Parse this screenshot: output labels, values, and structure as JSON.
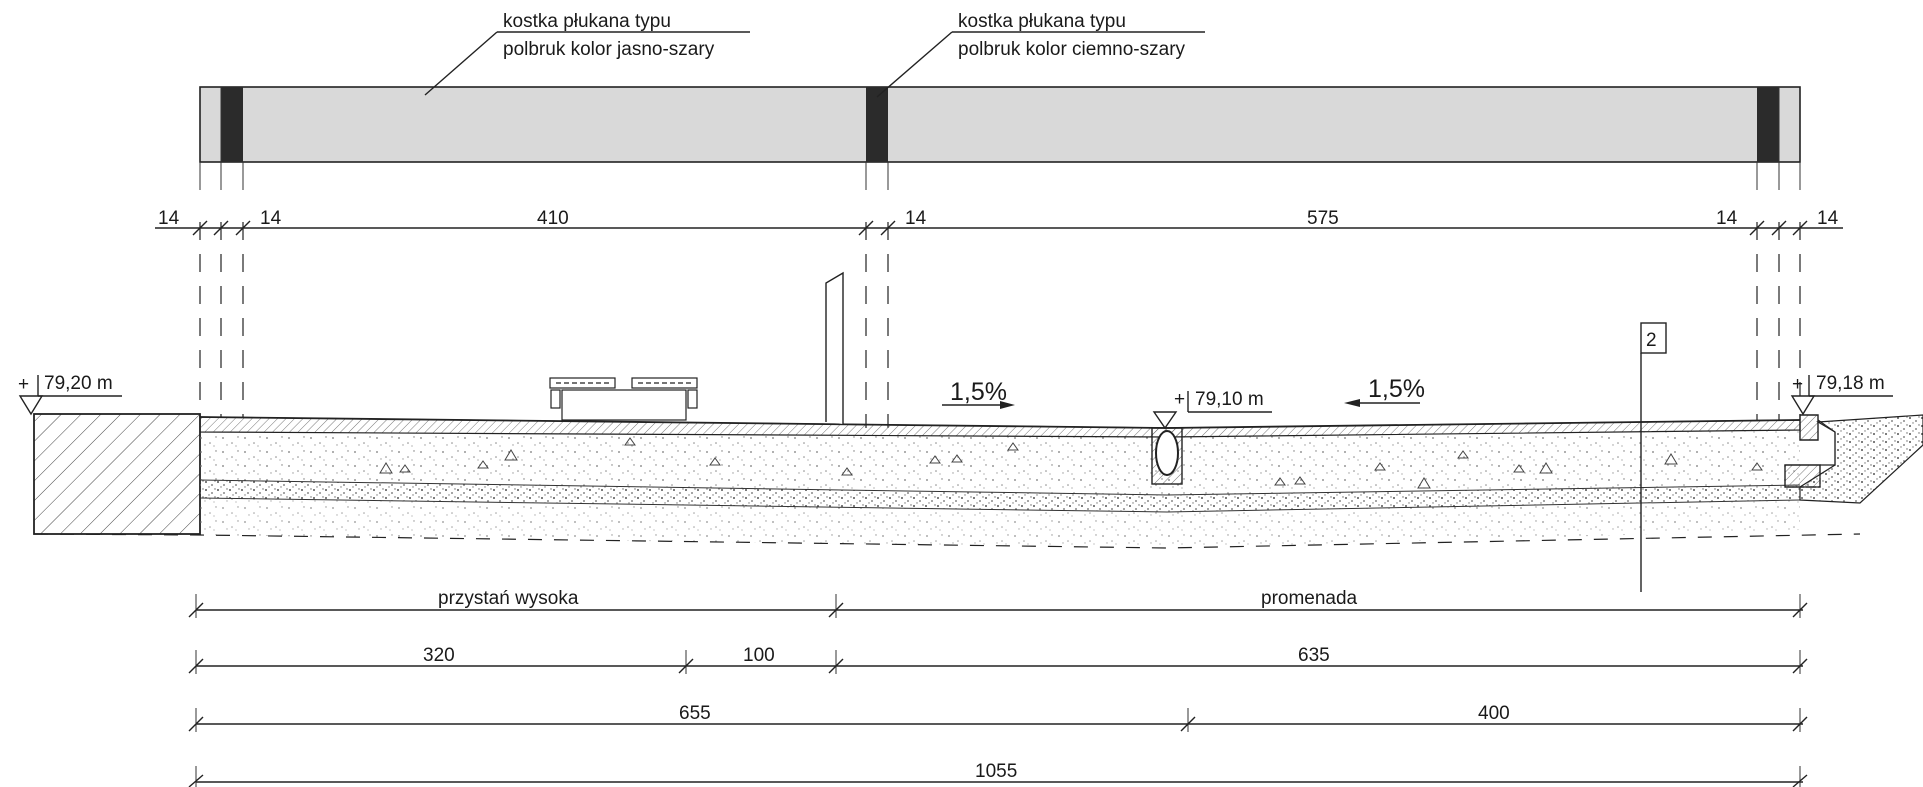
{
  "callouts": [
    {
      "line1": "kostka płukana typu",
      "line2": "polbruk kolor jasno-szary"
    },
    {
      "line1": "kostka płukana typu",
      "line2": "polbruk kolor ciemno-szary"
    }
  ],
  "top_dimensions": [
    "14",
    "14",
    "410",
    "14",
    "575",
    "14",
    "14"
  ],
  "elevations": [
    "79,20 m",
    "79,10 m",
    "79,18 m"
  ],
  "slopes": [
    "1,5%",
    "1,5%"
  ],
  "section_marker": "2",
  "bottom_dimensions": {
    "row1": [
      "przystań wysoka",
      "promenada"
    ],
    "row2": [
      "320",
      "100",
      "635"
    ],
    "row3": [
      "655",
      "400"
    ],
    "row4": [
      "1055"
    ]
  },
  "colors": {
    "light_paving": "#d9d9d9",
    "dark_paving": "#2b2b2b",
    "line": "#222222"
  }
}
